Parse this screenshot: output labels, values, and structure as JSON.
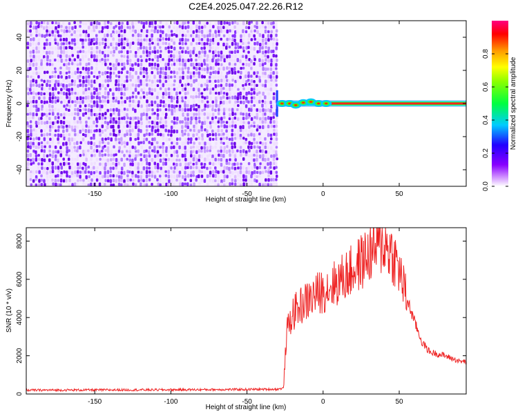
{
  "title": "C2E4.2025.047.22.26.R12",
  "chart_data": [
    {
      "type": "heatmap",
      "xlabel": "Height of straight line (km)",
      "ylabel": "Frequency (Hz)",
      "xlim": [
        -195,
        94
      ],
      "ylim": [
        -50,
        50
      ],
      "x_ticks": [
        -150,
        -100,
        -50,
        0,
        50
      ],
      "y_ticks": [
        -40,
        -20,
        0,
        20,
        40
      ],
      "grid": false,
      "regions": [
        {
          "x_range": [
            -195,
            -30
          ],
          "description": "broadband noise",
          "amplitude": 0.1
        },
        {
          "x_range": [
            -30,
            94
          ],
          "description": "narrow carrier line at 0 Hz",
          "amplitude": 1.0
        }
      ],
      "colorbar": {
        "label": "Normalized spectral amplitude",
        "ticks": [
          0.0,
          0.2,
          0.4,
          0.6,
          0.8
        ],
        "range": [
          0,
          1
        ],
        "colormap": [
          "#ffffff",
          "#9400ff",
          "#2200ff",
          "#00ccff",
          "#00ff40",
          "#ffff00",
          "#ff9900",
          "#ff0000",
          "#ff0080"
        ]
      }
    },
    {
      "type": "line",
      "xlabel": "Height of straight line (km)",
      "ylabel": "SNR (10 * v/v)",
      "xlim": [
        -195,
        94
      ],
      "ylim": [
        0,
        8700
      ],
      "x_ticks": [
        -150,
        -100,
        -50,
        0,
        50
      ],
      "y_ticks": [
        0,
        2000,
        4000,
        6000,
        8000
      ],
      "grid": false,
      "color": "#ee2222",
      "series": [
        {
          "x": [
            -195,
            -150,
            -100,
            -50,
            -30,
            -26,
            -24,
            -20,
            -15,
            -10,
            -5,
            0,
            10,
            20,
            30,
            35,
            40,
            45,
            50,
            55,
            60,
            65,
            70,
            80,
            90,
            94
          ],
          "values": [
            200,
            210,
            220,
            240,
            250,
            300,
            3200,
            4200,
            4600,
            4900,
            5200,
            5400,
            5900,
            6500,
            7300,
            7700,
            7900,
            7400,
            6500,
            5000,
            3800,
            2700,
            2200,
            2000,
            1700,
            1700
          ]
        }
      ]
    }
  ]
}
